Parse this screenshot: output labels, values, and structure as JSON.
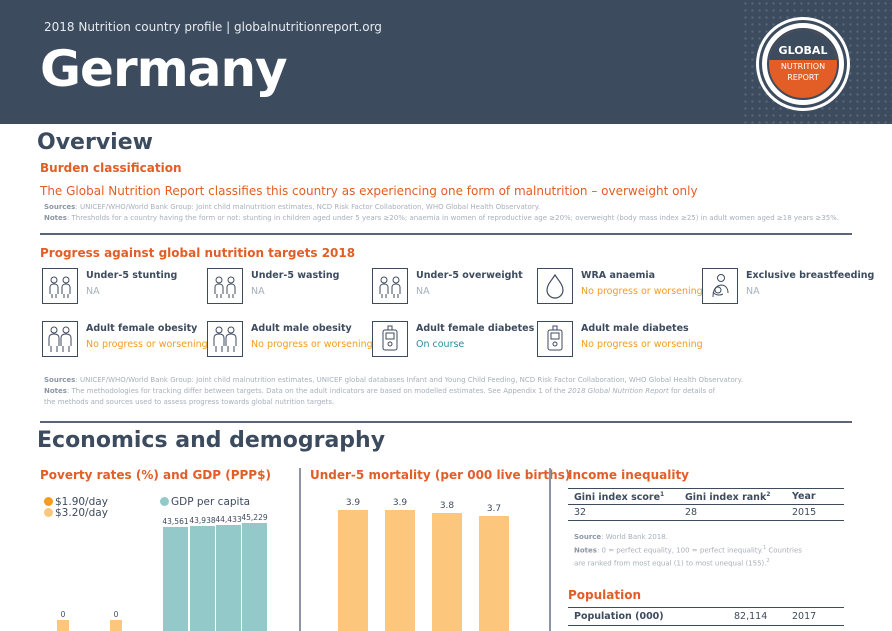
{
  "header": {
    "subtitle": "2018 Nutrition country profile  |  globalnutritionreport.org",
    "country": "Germany",
    "logo_top": "GLOBAL",
    "logo_line1": "NUTRITION",
    "logo_line2": "REPORT"
  },
  "overview": {
    "title": "Overview",
    "burden_title": "Burden classification",
    "burden_text": "The Global Nutrition Report classifies this country as experiencing one form of malnutrition – overweight only",
    "sources_label": "Sources",
    "sources_text": ": UNICEF/WHO/World Bank Group: Joint child malnutrition estimates, NCD Risk Factor Collaboration, WHO Global Health Observatory.",
    "notes_label": "Notes",
    "notes_text": ": Thresholds for a country having the form or not: stunting in children aged under 5 years ≥20%; anaemia in women of reproductive age ≥20%; overweight (body mass index ≥25) in adult women aged ≥18 years ≥35%."
  },
  "progress": {
    "title": "Progress against global nutrition targets 2018",
    "targets": [
      {
        "name": "Under-5 stunting",
        "status": "NA",
        "status_class": "na",
        "icon": "children-icon"
      },
      {
        "name": "Under-5 wasting",
        "status": "NA",
        "status_class": "na",
        "icon": "children-icon"
      },
      {
        "name": "Under-5 overweight",
        "status": "NA",
        "status_class": "na",
        "icon": "children-icon"
      },
      {
        "name": "WRA anaemia",
        "status": "No progress or worsening",
        "status_class": "no",
        "icon": "blood-drop-icon"
      },
      {
        "name": "Exclusive breastfeeding",
        "status": "NA",
        "status_class": "na",
        "icon": "breastfeeding-icon"
      },
      {
        "name": "Adult female obesity",
        "status": "No progress or worsening",
        "status_class": "no",
        "icon": "adults-icon"
      },
      {
        "name": "Adult male obesity",
        "status": "No progress or worsening",
        "status_class": "no",
        "icon": "adults-icon"
      },
      {
        "name": "Adult female diabetes",
        "status": "On course",
        "status_class": "on",
        "icon": "glucose-meter-icon"
      },
      {
        "name": "Adult male diabetes",
        "status": "No progress or worsening",
        "status_class": "no",
        "icon": "glucose-meter-icon"
      }
    ],
    "sources_label": "Sources",
    "sources_text": ": UNICEF/WHO/World Bank Group: Joint child malnutrition estimates, UNICEF global databases Infant and Young Child Feeding, NCD Risk Factor Collaboration, WHO Global Health Observatory.",
    "notes_label": "Notes",
    "notes_text_1": ": The methodologies for tracking differ between targets. Data on the adult indicators are based on modelled estimates. See Appendix 1 of the ",
    "notes_italic": "2018 Global Nutrition Report",
    "notes_text_2": " for details of",
    "notes_text_3": "the methods and sources used to assess progress towards global nutrition targets."
  },
  "economics": {
    "title": "Economics and demography",
    "poverty_title": "Poverty rates (%) and GDP (PPP$)",
    "mortality_title": "Under-5 mortality (per 000 live births)",
    "income_title": "Income inequality",
    "population_title": "Population"
  },
  "colors": {
    "orange": "#e35d26",
    "amber": "#f39c1f",
    "bar_gdp": "#93c9c9",
    "bar_mortality": "#fcc77c",
    "navy": "#3d4b5e"
  },
  "chart_data": [
    {
      "type": "bar",
      "title": "Poverty rates (%) and GDP (PPP$)",
      "legend": [
        "$1.90/day",
        "$3.20/day",
        "GDP per capita"
      ],
      "series": [
        {
          "name": "$1.90/day",
          "values": [
            0,
            0
          ]
        },
        {
          "name": "$3.20/day",
          "values": [
            0,
            0
          ]
        },
        {
          "name": "GDP per capita",
          "values": [
            43561,
            43938,
            44433,
            45229
          ]
        }
      ],
      "gdp_labels": [
        "43,561",
        "43,938",
        "44,433",
        "45,229"
      ],
      "poverty_labels": [
        "0",
        "0"
      ]
    },
    {
      "type": "bar",
      "title": "Under-5 mortality (per 000 live births)",
      "values": [
        3.9,
        3.9,
        3.8,
        3.7
      ],
      "labels": [
        "3.9",
        "3.9",
        "3.8",
        "3.7"
      ],
      "ylim": [
        0,
        3.9
      ]
    }
  ],
  "income": {
    "headers": [
      "Gini index score",
      "Gini index rank",
      "Year"
    ],
    "header_sups": [
      "1",
      "2",
      ""
    ],
    "row": [
      "32",
      "28",
      "2015"
    ],
    "source_label": "Source",
    "source_text": ": World Bank 2018.",
    "notes_label": "Notes",
    "notes_text": ": 0 = perfect equality, 100 = perfect inequality.",
    "notes_sup1": "1",
    "notes_text2": " Countries",
    "notes_text3": "are ranked from most equal (1) to most unequal (155).",
    "notes_sup2": "2"
  },
  "population": {
    "label": "Population (000)",
    "value": "82,114",
    "year": "2017"
  }
}
